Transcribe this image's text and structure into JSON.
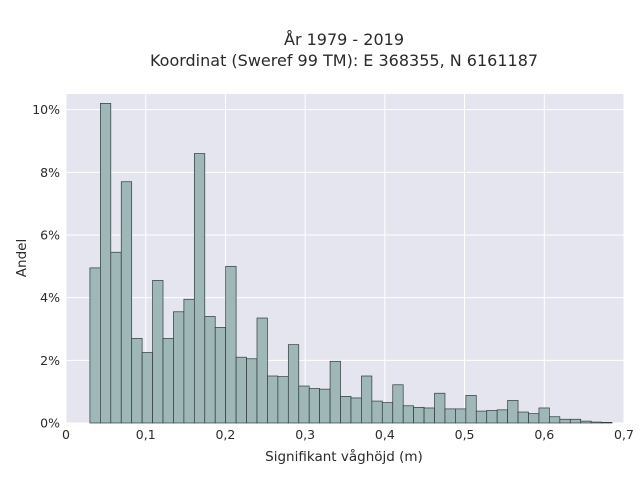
{
  "chart_data": {
    "type": "bar",
    "title_lines": [
      "År 1979 - 2019",
      "Koordinat (Sweref 99 TM): E 368355, N 6161187"
    ],
    "xlabel": "Signifikant våghöjd (m)",
    "ylabel": "Andel",
    "xlim": [
      0,
      0.7
    ],
    "ylim": [
      0,
      10.5
    ],
    "x_ticks": [
      0,
      0.1,
      0.2,
      0.3,
      0.4,
      0.5,
      0.6,
      0.7
    ],
    "x_tick_labels": [
      "0",
      "0,1",
      "0,2",
      "0,3",
      "0,4",
      "0,5",
      "0,6",
      "0,7"
    ],
    "y_ticks": [
      0,
      2,
      4,
      6,
      8,
      10
    ],
    "y_tick_labels": [
      "0%",
      "2%",
      "4%",
      "6%",
      "8%",
      "10%"
    ],
    "bin_start": 0.03,
    "bin_width": 0.0131,
    "values": [
      4.95,
      10.2,
      5.45,
      7.7,
      2.7,
      2.25,
      4.55,
      2.7,
      3.55,
      3.95,
      8.6,
      3.4,
      3.05,
      5.0,
      2.1,
      2.05,
      3.35,
      1.5,
      1.48,
      2.5,
      1.18,
      1.1,
      1.08,
      1.97,
      0.85,
      0.8,
      1.5,
      0.7,
      0.65,
      1.22,
      0.55,
      0.5,
      0.48,
      0.95,
      0.45,
      0.45,
      0.88,
      0.38,
      0.4,
      0.42,
      0.72,
      0.35,
      0.3,
      0.48,
      0.2,
      0.12,
      0.12,
      0.06,
      0.03,
      0.02
    ],
    "grid": true,
    "colors": {
      "bar_fill": "#9fb7b7",
      "bar_edge": "#2f3a3a",
      "plot_bg": "#e5e5f0",
      "grid": "#ffffff"
    }
  }
}
